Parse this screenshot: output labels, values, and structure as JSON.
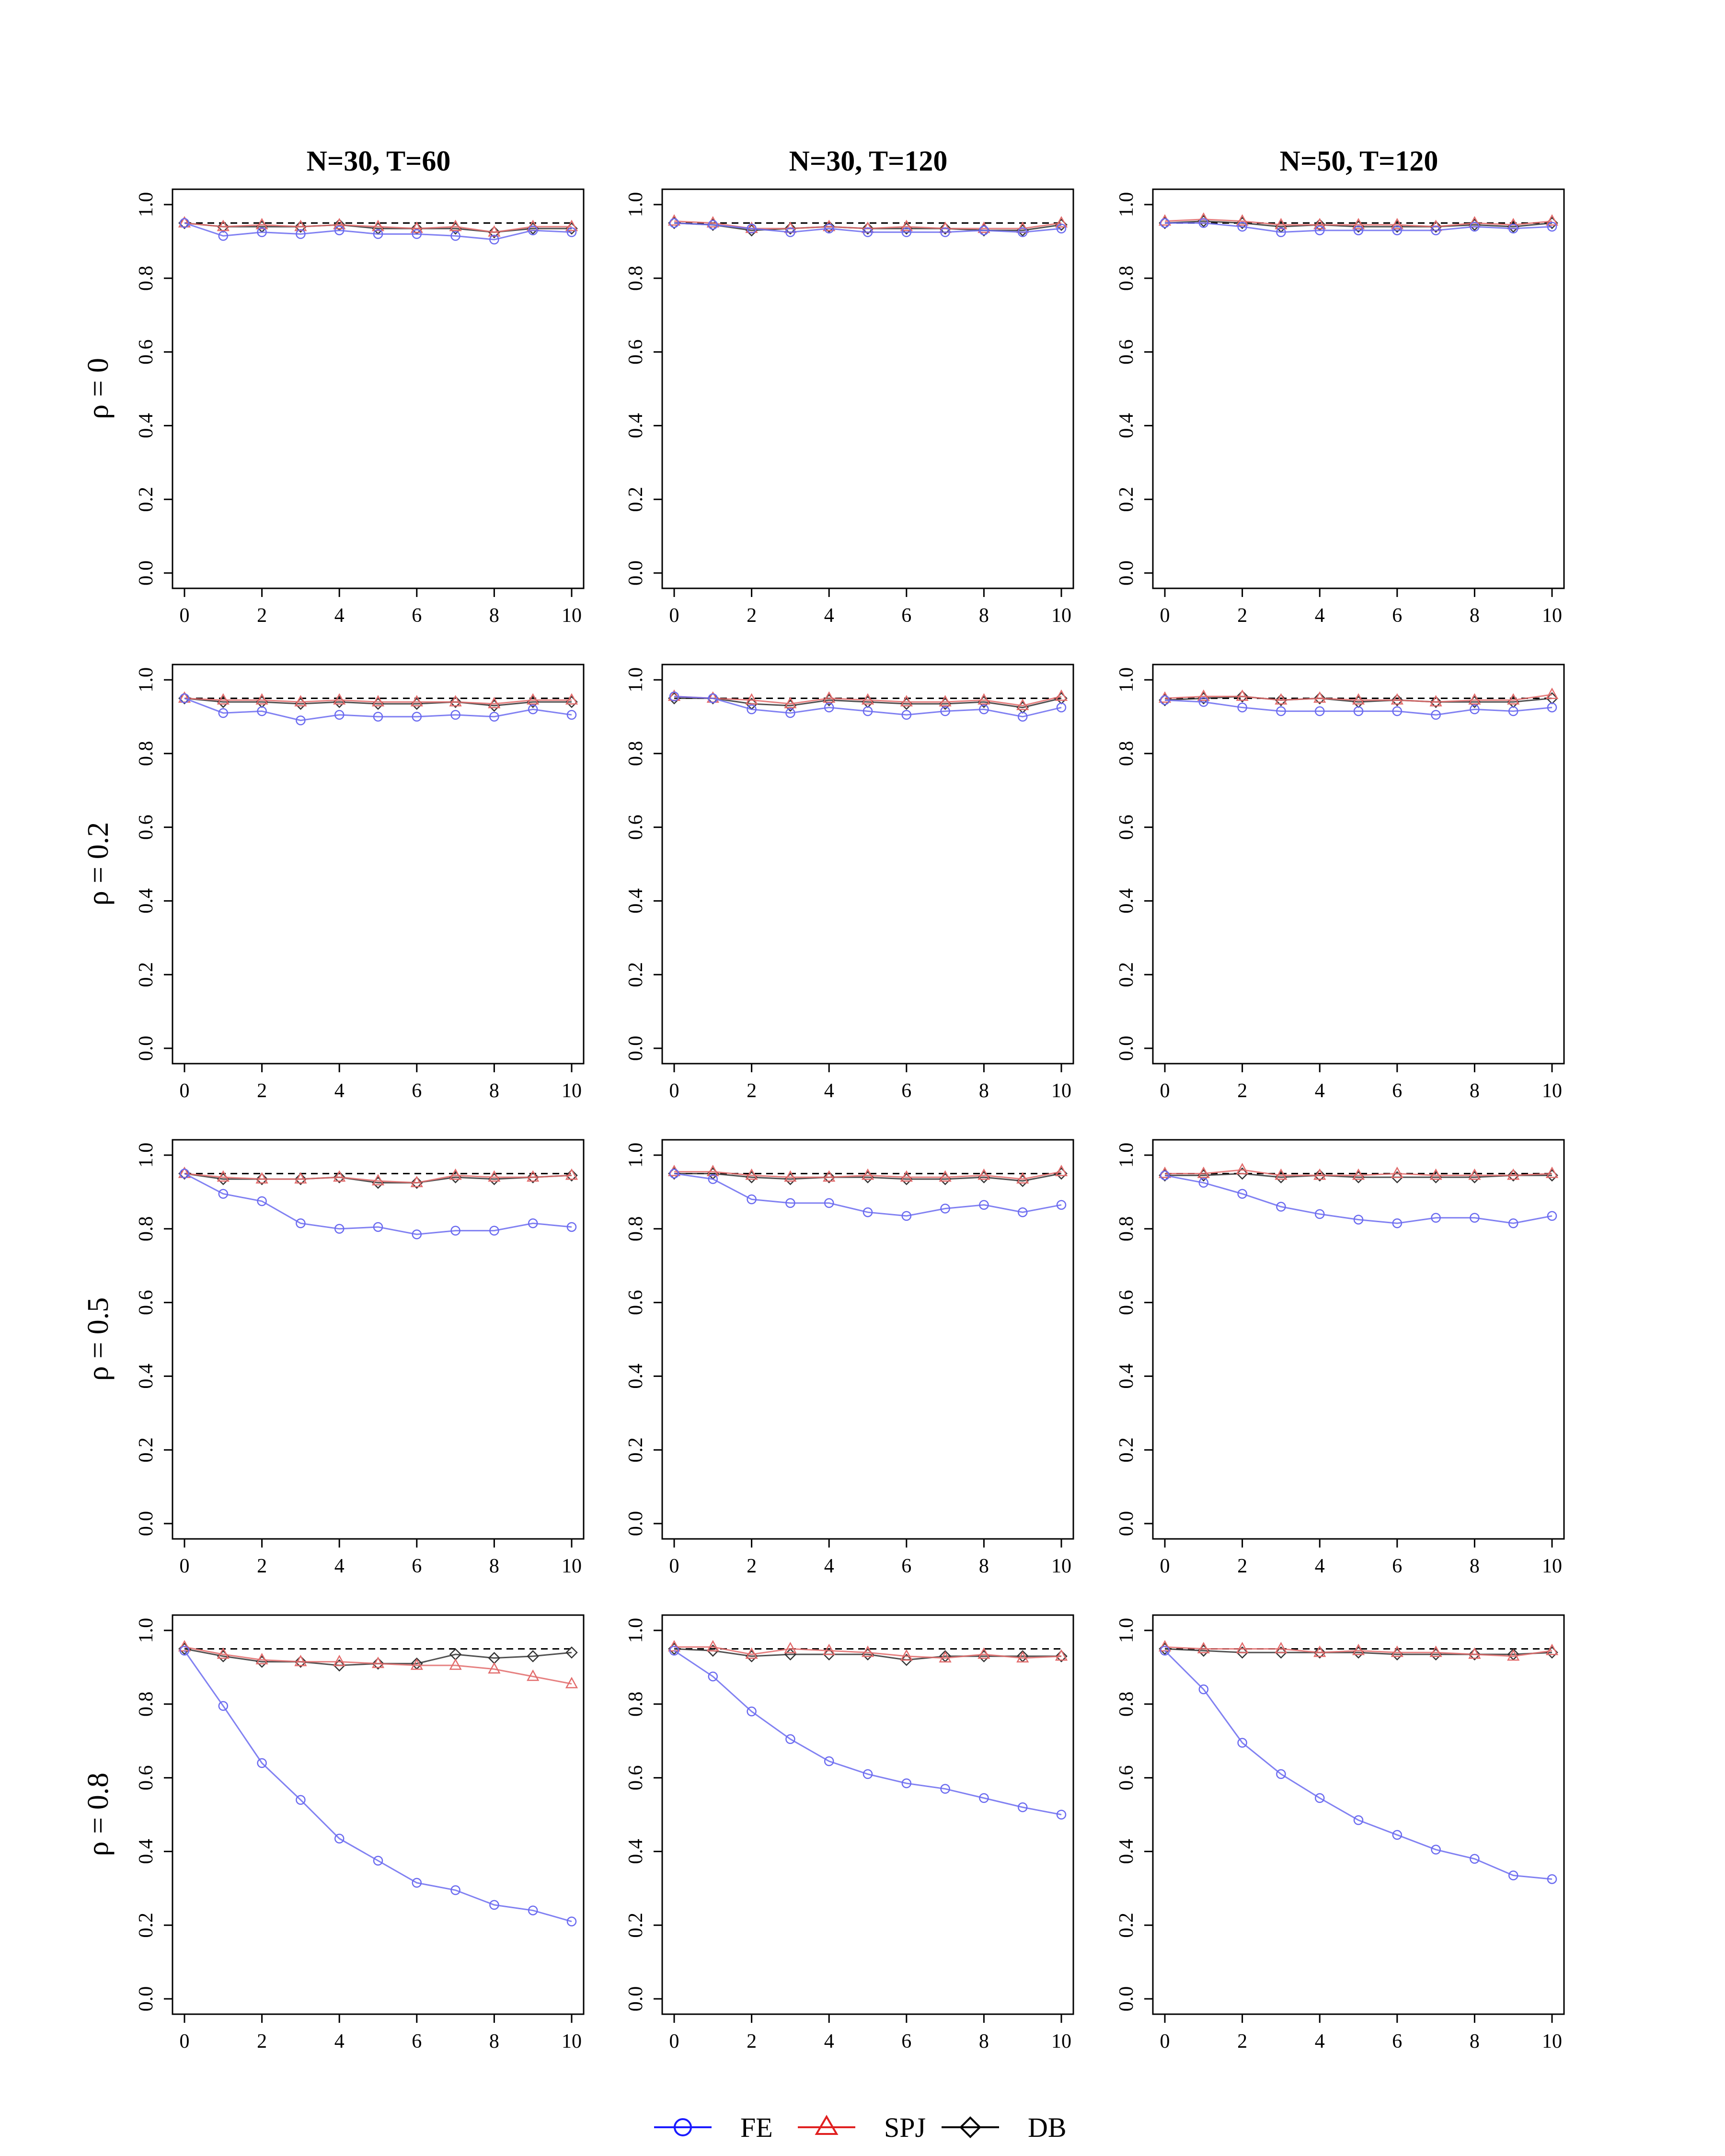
{
  "columns": [
    "N=30, T=60",
    "N=30, T=120",
    "N=50, T=120"
  ],
  "rows": [
    "ρ = 0",
    "ρ = 0.2",
    "ρ = 0.5",
    "ρ = 0.8"
  ],
  "legend": [
    {
      "name": "FE",
      "color": "#6b6bf0",
      "marker": "circle"
    },
    {
      "name": "SPJ",
      "color": "#e26b6b",
      "marker": "triangle"
    },
    {
      "name": "DB",
      "color": "#333333",
      "marker": "diamond"
    }
  ],
  "chart_data": {
    "type": "line",
    "x": [
      0,
      1,
      2,
      3,
      4,
      5,
      6,
      7,
      8,
      9,
      10
    ],
    "xticks": [
      0,
      2,
      4,
      6,
      8,
      10
    ],
    "xlim": [
      0,
      10
    ],
    "ylim": [
      0.0,
      1.0
    ],
    "yticks": [
      "0.0",
      "0.2",
      "0.4",
      "0.6",
      "0.8",
      "1.0"
    ],
    "reference_line": 0.95,
    "grid": false,
    "legend_position": "bottom-center",
    "panels": [
      {
        "col": 0,
        "row": 0,
        "series": [
          {
            "name": "FE",
            "values": [
              0.95,
              0.915,
              0.925,
              0.92,
              0.93,
              0.92,
              0.92,
              0.915,
              0.905,
              0.93,
              0.925
            ]
          },
          {
            "name": "SPJ",
            "values": [
              0.95,
              0.94,
              0.945,
              0.94,
              0.945,
              0.94,
              0.935,
              0.94,
              0.925,
              0.94,
              0.94
            ]
          },
          {
            "name": "DB",
            "values": [
              0.95,
              0.94,
              0.94,
              0.94,
              0.945,
              0.935,
              0.935,
              0.935,
              0.925,
              0.935,
              0.935
            ]
          }
        ]
      },
      {
        "col": 1,
        "row": 0,
        "series": [
          {
            "name": "FE",
            "values": [
              0.95,
              0.945,
              0.935,
              0.925,
              0.935,
              0.925,
              0.925,
              0.925,
              0.93,
              0.925,
              0.935
            ]
          },
          {
            "name": "SPJ",
            "values": [
              0.955,
              0.95,
              0.935,
              0.935,
              0.94,
              0.935,
              0.94,
              0.935,
              0.935,
              0.935,
              0.95
            ]
          },
          {
            "name": "DB",
            "values": [
              0.95,
              0.945,
              0.93,
              0.935,
              0.94,
              0.935,
              0.935,
              0.935,
              0.93,
              0.93,
              0.945
            ]
          }
        ]
      },
      {
        "col": 2,
        "row": 0,
        "series": [
          {
            "name": "FE",
            "values": [
              0.95,
              0.95,
              0.94,
              0.925,
              0.93,
              0.93,
              0.93,
              0.93,
              0.94,
              0.935,
              0.94
            ]
          },
          {
            "name": "SPJ",
            "values": [
              0.955,
              0.96,
              0.955,
              0.945,
              0.945,
              0.945,
              0.945,
              0.94,
              0.95,
              0.945,
              0.955
            ]
          },
          {
            "name": "DB",
            "values": [
              0.95,
              0.955,
              0.95,
              0.94,
              0.945,
              0.94,
              0.94,
              0.94,
              0.945,
              0.94,
              0.95
            ]
          }
        ]
      },
      {
        "col": 0,
        "row": 1,
        "series": [
          {
            "name": "FE",
            "values": [
              0.95,
              0.91,
              0.915,
              0.89,
              0.905,
              0.9,
              0.9,
              0.905,
              0.9,
              0.92,
              0.905
            ]
          },
          {
            "name": "SPJ",
            "values": [
              0.95,
              0.945,
              0.945,
              0.94,
              0.945,
              0.94,
              0.94,
              0.94,
              0.935,
              0.945,
              0.945
            ]
          },
          {
            "name": "DB",
            "values": [
              0.95,
              0.94,
              0.94,
              0.935,
              0.94,
              0.935,
              0.935,
              0.94,
              0.93,
              0.94,
              0.94
            ]
          }
        ]
      },
      {
        "col": 1,
        "row": 1,
        "series": [
          {
            "name": "FE",
            "values": [
              0.955,
              0.95,
              0.92,
              0.91,
              0.925,
              0.915,
              0.905,
              0.915,
              0.92,
              0.9,
              0.925
            ]
          },
          {
            "name": "SPJ",
            "values": [
              0.955,
              0.95,
              0.945,
              0.935,
              0.95,
              0.945,
              0.94,
              0.94,
              0.945,
              0.93,
              0.955
            ]
          },
          {
            "name": "DB",
            "values": [
              0.95,
              0.95,
              0.935,
              0.93,
              0.945,
              0.94,
              0.935,
              0.935,
              0.94,
              0.925,
              0.95
            ]
          }
        ]
      },
      {
        "col": 2,
        "row": 1,
        "series": [
          {
            "name": "FE",
            "values": [
              0.945,
              0.94,
              0.925,
              0.915,
              0.915,
              0.915,
              0.915,
              0.905,
              0.92,
              0.915,
              0.925
            ]
          },
          {
            "name": "SPJ",
            "values": [
              0.95,
              0.955,
              0.955,
              0.945,
              0.95,
              0.945,
              0.945,
              0.94,
              0.945,
              0.945,
              0.96
            ]
          },
          {
            "name": "DB",
            "values": [
              0.945,
              0.95,
              0.955,
              0.945,
              0.95,
              0.94,
              0.945,
              0.94,
              0.94,
              0.94,
              0.95
            ]
          }
        ]
      },
      {
        "col": 0,
        "row": 2,
        "series": [
          {
            "name": "FE",
            "values": [
              0.95,
              0.895,
              0.875,
              0.815,
              0.8,
              0.805,
              0.785,
              0.795,
              0.795,
              0.815,
              0.805
            ]
          },
          {
            "name": "SPJ",
            "values": [
              0.95,
              0.94,
              0.935,
              0.935,
              0.94,
              0.93,
              0.925,
              0.945,
              0.94,
              0.94,
              0.945
            ]
          },
          {
            "name": "DB",
            "values": [
              0.95,
              0.935,
              0.935,
              0.935,
              0.94,
              0.925,
              0.925,
              0.94,
              0.935,
              0.94,
              0.945
            ]
          }
        ]
      },
      {
        "col": 1,
        "row": 2,
        "series": [
          {
            "name": "FE",
            "values": [
              0.95,
              0.935,
              0.88,
              0.87,
              0.87,
              0.845,
              0.835,
              0.855,
              0.865,
              0.845,
              0.865
            ]
          },
          {
            "name": "SPJ",
            "values": [
              0.955,
              0.955,
              0.945,
              0.94,
              0.94,
              0.945,
              0.94,
              0.94,
              0.945,
              0.935,
              0.955
            ]
          },
          {
            "name": "DB",
            "values": [
              0.95,
              0.95,
              0.94,
              0.935,
              0.94,
              0.94,
              0.935,
              0.935,
              0.94,
              0.93,
              0.95
            ]
          }
        ]
      },
      {
        "col": 2,
        "row": 2,
        "series": [
          {
            "name": "FE",
            "values": [
              0.945,
              0.925,
              0.895,
              0.86,
              0.84,
              0.825,
              0.815,
              0.83,
              0.83,
              0.815,
              0.835
            ]
          },
          {
            "name": "SPJ",
            "values": [
              0.95,
              0.95,
              0.96,
              0.945,
              0.945,
              0.945,
              0.95,
              0.945,
              0.945,
              0.945,
              0.95
            ]
          },
          {
            "name": "DB",
            "values": [
              0.945,
              0.945,
              0.95,
              0.94,
              0.945,
              0.94,
              0.94,
              0.94,
              0.94,
              0.945,
              0.945
            ]
          }
        ]
      },
      {
        "col": 0,
        "row": 3,
        "series": [
          {
            "name": "FE",
            "values": [
              0.945,
              0.795,
              0.64,
              0.54,
              0.435,
              0.375,
              0.315,
              0.295,
              0.255,
              0.24,
              0.21
            ]
          },
          {
            "name": "SPJ",
            "values": [
              0.955,
              0.935,
              0.92,
              0.915,
              0.915,
              0.91,
              0.905,
              0.905,
              0.895,
              0.875,
              0.855
            ]
          },
          {
            "name": "DB",
            "values": [
              0.95,
              0.93,
              0.915,
              0.915,
              0.905,
              0.91,
              0.91,
              0.935,
              0.925,
              0.93,
              0.94
            ]
          }
        ]
      },
      {
        "col": 1,
        "row": 3,
        "series": [
          {
            "name": "FE",
            "values": [
              0.945,
              0.875,
              0.78,
              0.705,
              0.645,
              0.61,
              0.585,
              0.57,
              0.545,
              0.52,
              0.5
            ]
          },
          {
            "name": "SPJ",
            "values": [
              0.955,
              0.955,
              0.935,
              0.95,
              0.945,
              0.94,
              0.93,
              0.925,
              0.935,
              0.925,
              0.93
            ]
          },
          {
            "name": "DB",
            "values": [
              0.95,
              0.945,
              0.93,
              0.935,
              0.935,
              0.935,
              0.92,
              0.93,
              0.93,
              0.93,
              0.93
            ]
          }
        ]
      },
      {
        "col": 2,
        "row": 3,
        "series": [
          {
            "name": "FE",
            "values": [
              0.945,
              0.84,
              0.695,
              0.61,
              0.545,
              0.485,
              0.445,
              0.405,
              0.38,
              0.335,
              0.325
            ]
          },
          {
            "name": "SPJ",
            "values": [
              0.955,
              0.95,
              0.95,
              0.95,
              0.94,
              0.945,
              0.94,
              0.94,
              0.935,
              0.93,
              0.945
            ]
          },
          {
            "name": "DB",
            "values": [
              0.95,
              0.945,
              0.94,
              0.94,
              0.94,
              0.94,
              0.935,
              0.935,
              0.935,
              0.935,
              0.94
            ]
          }
        ]
      }
    ]
  }
}
